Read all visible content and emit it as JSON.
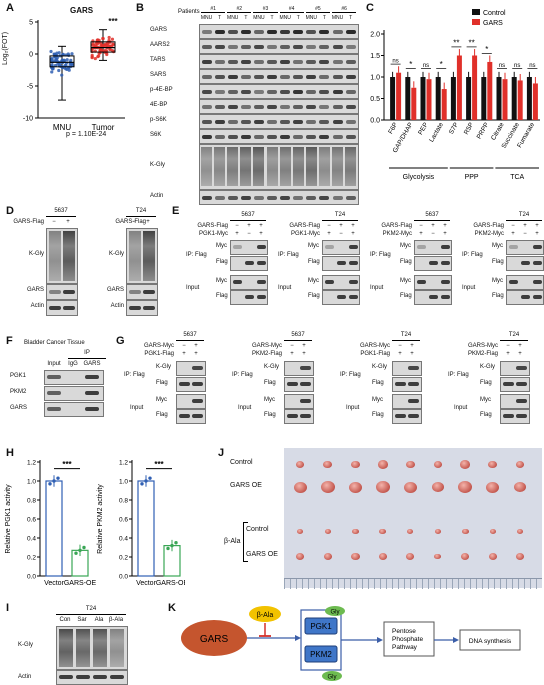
{
  "panels": {
    "A": {
      "label": "A",
      "title": "GARS",
      "ylabel": "Log₂(FOT)",
      "yticks": [
        "5",
        "0",
        "-5",
        "-10"
      ],
      "groups": [
        "MNU",
        "Tumor"
      ],
      "sig": "***",
      "pvalue": "p = 1.10E-24"
    },
    "B": {
      "label": "B",
      "patients_label": "Patients",
      "patients": [
        "#1",
        "#2",
        "#3",
        "#4",
        "#5",
        "#6"
      ],
      "lanes": [
        "MNU",
        "T"
      ],
      "rows": [
        "GARS",
        "AARS2",
        "TARS",
        "SARS",
        "p-4E-BP",
        "4E-BP",
        "p-S6K",
        "S6K",
        "K-Gly",
        "Actin"
      ]
    },
    "C": {
      "label": "C",
      "legend": [
        "Control",
        "GARS"
      ],
      "yticks": [
        "2.0",
        "1.5",
        "1.0",
        "0.5",
        "0.0"
      ],
      "categories": [
        "F6P",
        "GAP/DHAP",
        "PEP",
        "Lactate",
        "S7P",
        "R5P",
        "PRPP",
        "Citrate",
        "Succinate",
        "Fumarate"
      ],
      "sig": [
        "ns",
        "*",
        "ns",
        "*",
        "**",
        "**",
        "*",
        "ns",
        "ns",
        "ns"
      ],
      "groups": [
        "Glycolysis",
        "PPP",
        "TCA"
      ]
    },
    "D": {
      "label": "D",
      "cell_lines": [
        "5637",
        "T24"
      ],
      "condition": "GARS-Flag",
      "signs": [
        "−",
        "+"
      ],
      "rows": [
        "K-Gly",
        "GARS",
        "Actin"
      ]
    },
    "E": {
      "label": "E",
      "blocks": [
        {
          "cell": "5637",
          "r1": "GARS-Flag",
          "r2": "PGK1-Myc",
          "s1": [
            "−",
            "+",
            "+"
          ],
          "s2": [
            "+",
            "−",
            "+"
          ]
        },
        {
          "cell": "T24",
          "r1": "GARS-Flag",
          "r2": "PGK1-Myc",
          "s1": [
            "−",
            "+",
            "+"
          ],
          "s2": [
            "+",
            "−",
            "+"
          ]
        },
        {
          "cell": "5637",
          "r1": "GARS-Flag",
          "r2": "PKM2-Myc",
          "s1": [
            "−",
            "+",
            "+"
          ],
          "s2": [
            "+",
            "−",
            "+"
          ]
        },
        {
          "cell": "T24",
          "r1": "GARS-Flag",
          "r2": "PKM2-Myc",
          "s1": [
            "−",
            "+",
            "+"
          ],
          "s2": [
            "+",
            "−",
            "+"
          ]
        }
      ],
      "ip": "IP: Flag",
      "input": "Input",
      "myc": "Myc",
      "flag": "Flag"
    },
    "F": {
      "label": "F",
      "title": "Bladder Cancer Tissue",
      "ip": "IP",
      "lanes": [
        "Input",
        "IgG",
        "GARS"
      ],
      "rows": [
        "PGK1",
        "PKM2",
        "GARS"
      ]
    },
    "G": {
      "label": "G",
      "blocks": [
        {
          "cell": "5637",
          "r1": "GARS-Myc",
          "r2": "PGK1-Flag",
          "s1": [
            "−",
            "+"
          ],
          "s2": [
            "+",
            "+"
          ]
        },
        {
          "cell": "5637",
          "r1": "GARS-Myc",
          "r2": "PKM2-Flag",
          "s1": [
            "−",
            "+"
          ],
          "s2": [
            "+",
            "+"
          ]
        },
        {
          "cell": "T24",
          "r1": "GARS-Myc",
          "r2": "PGK1-Flag",
          "s1": [
            "−",
            "+"
          ],
          "s2": [
            "+",
            "+"
          ]
        },
        {
          "cell": "T24",
          "r1": "GARS-Myc",
          "r2": "PKM2-Flag",
          "s1": [
            "−",
            "+"
          ],
          "s2": [
            "+",
            "+"
          ]
        }
      ],
      "ip": "IP: Flag",
      "input": "Input",
      "kgly": "K-Gly",
      "myc": "Myc",
      "flag": "Flag"
    },
    "H": {
      "label": "H",
      "charts": [
        {
          "ylabel": "Relative PGK1 activity",
          "sig": "***",
          "categories": [
            "Vector",
            "GARS-OE"
          ],
          "values": [
            1.0,
            0.27
          ],
          "yticks": [
            "1.2",
            "1.0",
            "0.8",
            "0.6",
            "0.4",
            "0.2",
            "0.0"
          ]
        },
        {
          "ylabel": "Relative PKM2 activity",
          "sig": "***",
          "categories": [
            "Vector",
            "GARS-OE"
          ],
          "values": [
            1.0,
            0.32
          ],
          "yticks": [
            "1.2",
            "1.0",
            "0.8",
            "0.6",
            "0.4",
            "0.2",
            "0.0"
          ]
        }
      ],
      "colors": {
        "vector": "#2f5fb3",
        "gars": "#3aa655"
      }
    },
    "I": {
      "label": "I",
      "cell": "T24",
      "lanes": [
        "Con",
        "Sar",
        "Ala",
        "β-Ala"
      ],
      "rows": [
        "K-Gly",
        "Actin"
      ]
    },
    "J": {
      "label": "J",
      "rows": [
        "Control",
        "GARS OE",
        "Control",
        "GARS OE"
      ],
      "beta": "β-Ala"
    },
    "K": {
      "label": "K",
      "gars": "GARS",
      "beta_ala": "β-Ala",
      "pgk1": "PGK1",
      "pkm2": "PKM2",
      "gly": "Gly",
      "ppp": [
        "Pentose",
        "Phosphate",
        "Pathway"
      ],
      "dna": "DNA synthesis"
    }
  },
  "chart_data": [
    {
      "type": "bar",
      "categories": [
        "Vector",
        "GARS-OE"
      ],
      "values": [
        1.0,
        0.27
      ],
      "ylabel": "Relative PGK1 activity",
      "ylim": [
        0,
        1.2
      ]
    },
    {
      "type": "bar",
      "categories": [
        "Vector",
        "GARS-OE"
      ],
      "values": [
        1.0,
        0.32
      ],
      "ylabel": "Relative PKM2 activity",
      "ylim": [
        0,
        1.2
      ]
    },
    {
      "type": "bar",
      "categories": [
        "F6P",
        "GAP/DHAP",
        "PEP",
        "Lactate",
        "S7P",
        "R5P",
        "PRPP",
        "Citrate",
        "Succinate",
        "Fumarate"
      ],
      "series": [
        {
          "name": "Control",
          "values": [
            1.0,
            1.0,
            1.0,
            1.0,
            1.0,
            1.0,
            1.0,
            1.0,
            1.0,
            1.0
          ]
        },
        {
          "name": "GARS",
          "values": [
            1.1,
            0.75,
            0.95,
            0.72,
            1.5,
            1.5,
            1.35,
            0.95,
            0.92,
            0.85
          ]
        }
      ],
      "ylim": [
        0,
        2.0
      ]
    }
  ]
}
